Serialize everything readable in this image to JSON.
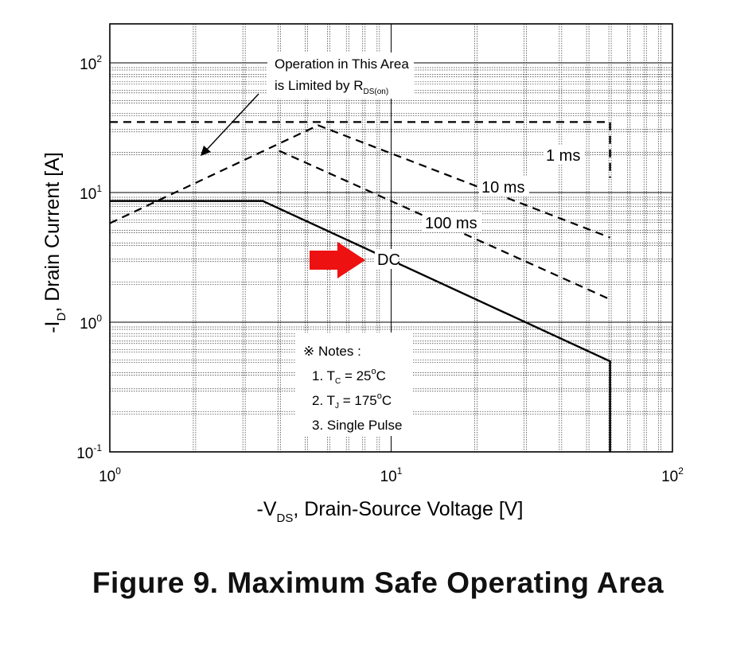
{
  "chart_data": {
    "type": "line",
    "x_scale": "log",
    "y_scale": "log",
    "xlim": [
      1,
      100
    ],
    "ylim": [
      0.1,
      200
    ],
    "grid": true,
    "xlabel": {
      "prefix": "-V",
      "sub": "DS",
      "suffix": ", Drain-Source Voltage [V]"
    },
    "ylabel": {
      "prefix": "-I",
      "sub": "D",
      "suffix": ", Drain Current [A]"
    },
    "x_ticks": [
      {
        "value": 1,
        "base": "10",
        "exp": "0"
      },
      {
        "value": 10,
        "base": "10",
        "exp": "1"
      },
      {
        "value": 100,
        "base": "10",
        "exp": "2"
      }
    ],
    "y_ticks": [
      {
        "value": 0.1,
        "base": "10",
        "exp": "-1"
      },
      {
        "value": 1,
        "base": "10",
        "exp": "0"
      },
      {
        "value": 10,
        "base": "10",
        "exp": "1"
      },
      {
        "value": 100,
        "base": "10",
        "exp": "2"
      }
    ],
    "series": [
      {
        "name": "1 ms",
        "style": "dashed",
        "points": [
          [
            1.0,
            35
          ],
          [
            60,
            35
          ],
          [
            60,
            13
          ]
        ]
      },
      {
        "name": "10 ms",
        "style": "dashed",
        "points": [
          [
            1.0,
            5.8
          ],
          [
            5.5,
            33
          ],
          [
            60,
            4.5
          ]
        ]
      },
      {
        "name": "100 ms",
        "style": "dashed",
        "points": [
          [
            4.0,
            21
          ],
          [
            60,
            1.5
          ]
        ]
      },
      {
        "name": "DC",
        "style": "solid",
        "points": [
          [
            1.0,
            8.6
          ],
          [
            3.5,
            8.6
          ],
          [
            60,
            0.5
          ],
          [
            60,
            0.1
          ]
        ]
      }
    ],
    "annotations": {
      "rds_line1": "Operation in This Area",
      "rds_line2_prefix": "is Limited by R",
      "rds_line2_sub": "DS(on)",
      "notes_title": "※ Notes :",
      "note1_prefix": "1. T",
      "note1_sub": "C",
      "note1_mid": " = 25",
      "note1_sup": "o",
      "note1_suffix": "C",
      "note2_prefix": "2. T",
      "note2_sub": "J",
      "note2_mid": " = 175",
      "note2_sup": "o",
      "note2_suffix": "C",
      "note3": "3. Single Pulse"
    },
    "highlight_arrow_color": "#ee1111"
  },
  "figure": {
    "caption": "Figure 9. Maximum Safe Operating Area"
  }
}
